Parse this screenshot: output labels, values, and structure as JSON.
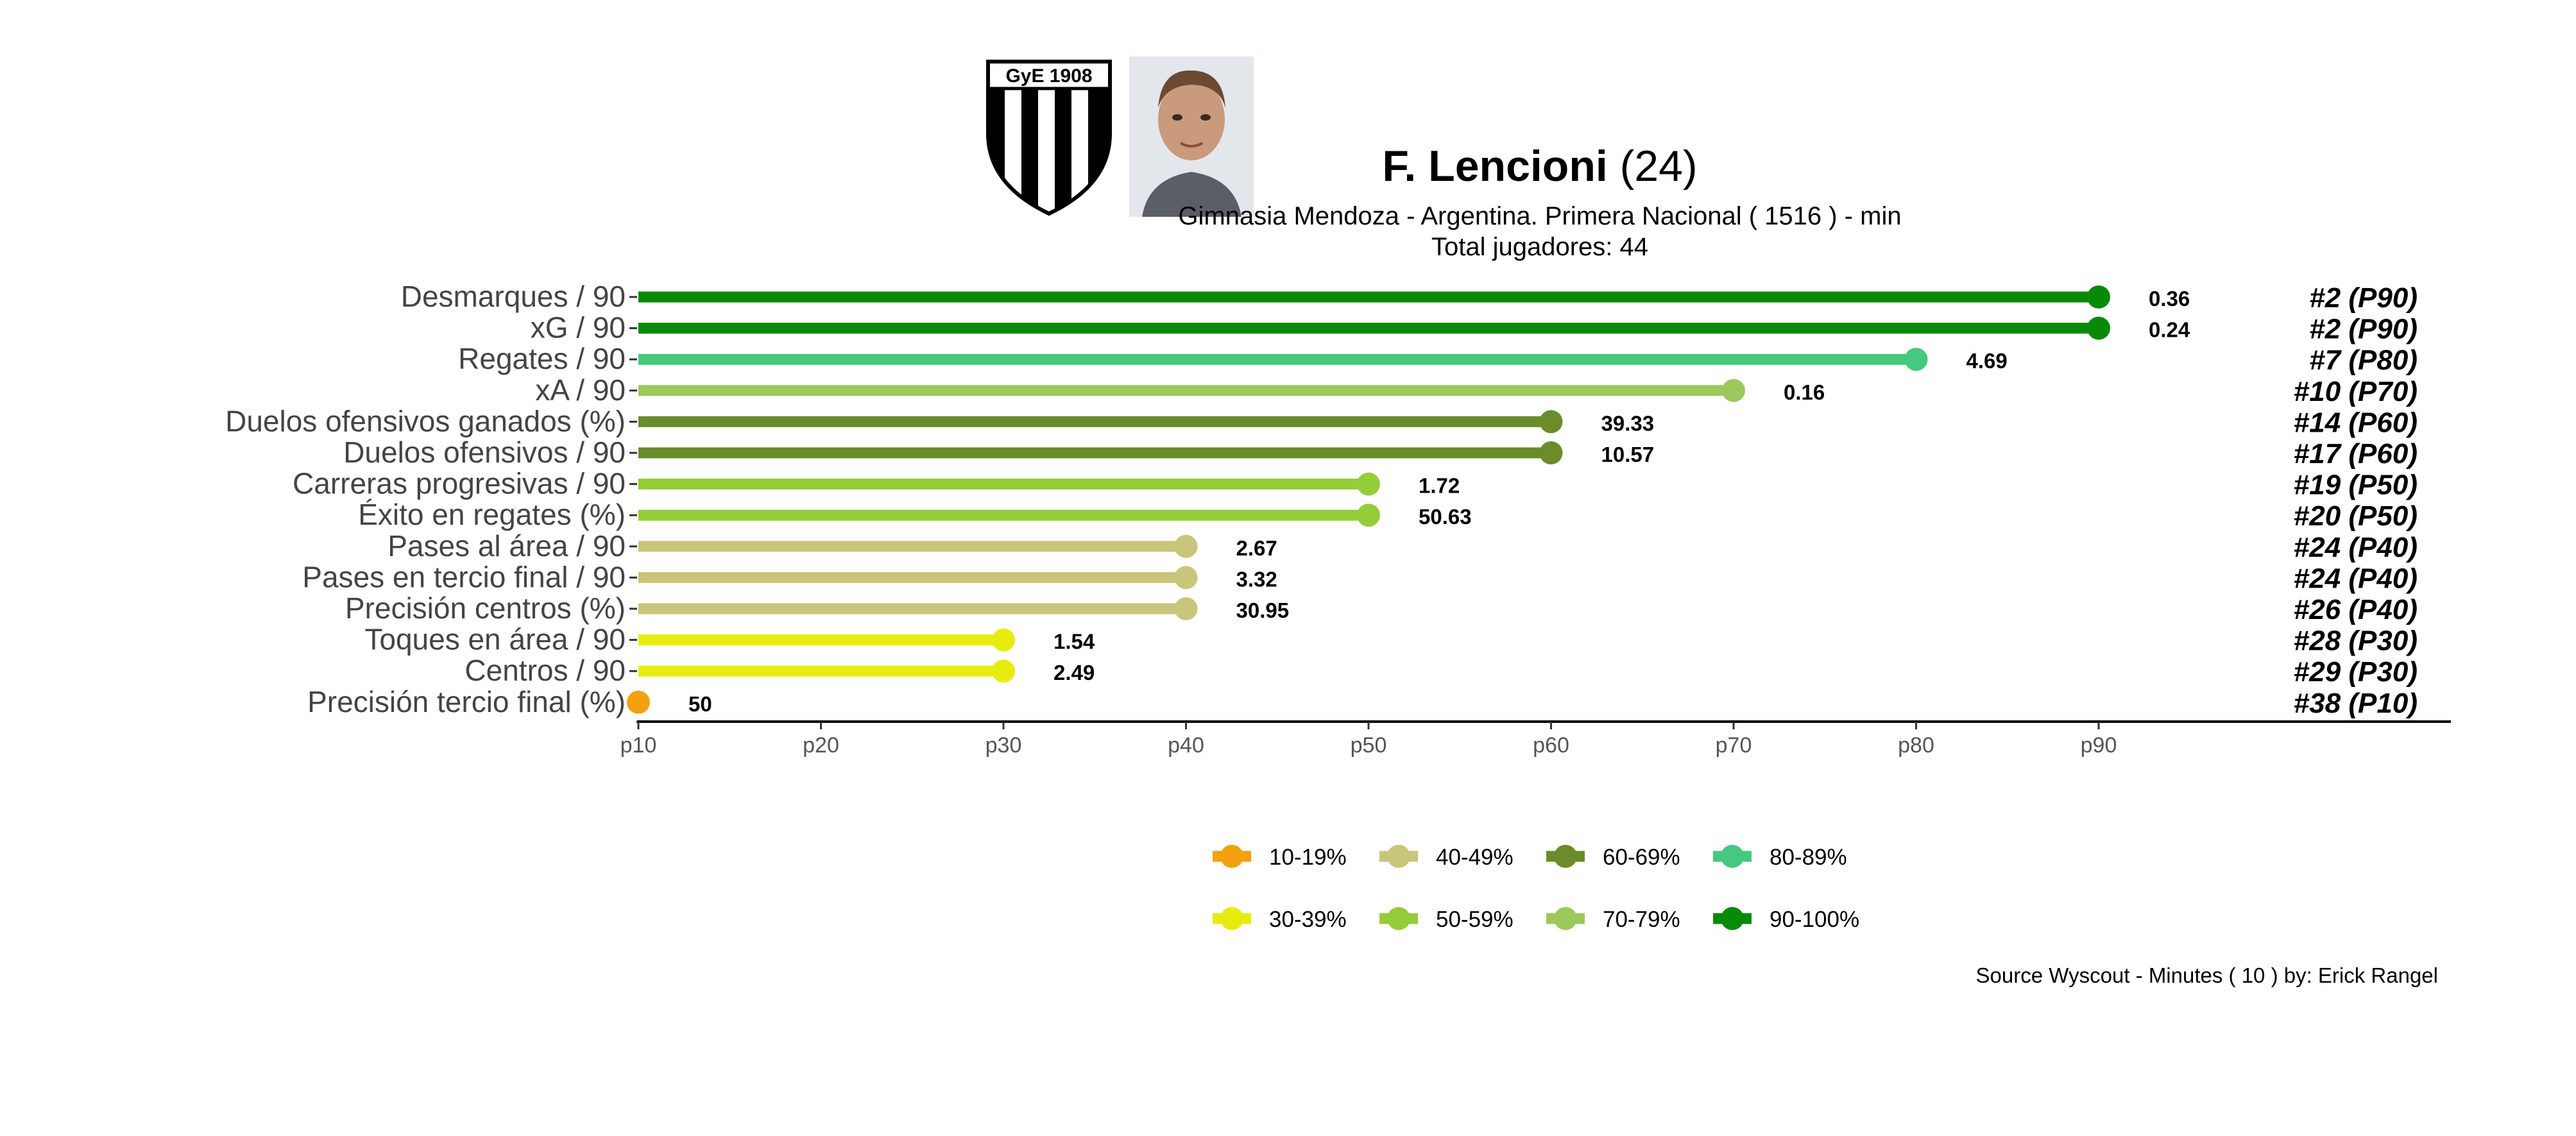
{
  "header": {
    "player_name": "F. Lencioni",
    "player_age": "(24)",
    "subtitle": "Gimnasia Mendoza  -  Argentina. Primera Nacional  ( 1516 ) - min",
    "total_players": "Total jugadores:  44",
    "crest_text": "GyE 1908"
  },
  "footer": {
    "source": "Source Wyscout - Minutes ( 10 ) by: Erick Rangel"
  },
  "colors": {
    "10-19%": "#f5a00f",
    "30-39%": "#e8ec0e",
    "40-49%": "#c9c57a",
    "50-59%": "#95cc3a",
    "60-69%": "#6a8c2a",
    "70-79%": "#9cc85c",
    "80-89%": "#45c87f",
    "90-100%": "#088a08"
  },
  "chart_data": {
    "type": "lollipop",
    "x_ticks": [
      "p10",
      "p20",
      "p30",
      "p40",
      "p50",
      "p60",
      "p70",
      "p80",
      "p90"
    ],
    "xlim": [
      10,
      100
    ],
    "rows": [
      {
        "label": "Desmarques / 90",
        "percentile": 90,
        "value": "0.36",
        "rank": "#2 (P90)",
        "bin": "90-100%"
      },
      {
        "label": "xG / 90",
        "percentile": 90,
        "value": "0.24",
        "rank": "#2 (P90)",
        "bin": "90-100%"
      },
      {
        "label": "Regates / 90",
        "percentile": 80,
        "value": "4.69",
        "rank": "#7 (P80)",
        "bin": "80-89%"
      },
      {
        "label": "xA / 90",
        "percentile": 70,
        "value": "0.16",
        "rank": "#10 (P70)",
        "bin": "70-79%"
      },
      {
        "label": "Duelos ofensivos ganados (%)",
        "percentile": 60,
        "value": "39.33",
        "rank": "#14 (P60)",
        "bin": "60-69%"
      },
      {
        "label": "Duelos ofensivos / 90",
        "percentile": 60,
        "value": "10.57",
        "rank": "#17 (P60)",
        "bin": "60-69%"
      },
      {
        "label": "Carreras progresivas / 90",
        "percentile": 50,
        "value": "1.72",
        "rank": "#19 (P50)",
        "bin": "50-59%"
      },
      {
        "label": "Éxito en regates (%)",
        "percentile": 50,
        "value": "50.63",
        "rank": "#20 (P50)",
        "bin": "50-59%"
      },
      {
        "label": "Pases al área / 90",
        "percentile": 40,
        "value": "2.67",
        "rank": "#24 (P40)",
        "bin": "40-49%"
      },
      {
        "label": "Pases en tercio final / 90",
        "percentile": 40,
        "value": "3.32",
        "rank": "#24 (P40)",
        "bin": "40-49%"
      },
      {
        "label": "Precisión centros (%)",
        "percentile": 40,
        "value": "30.95",
        "rank": "#26 (P40)",
        "bin": "40-49%"
      },
      {
        "label": "Toques en área / 90",
        "percentile": 30,
        "value": "1.54",
        "rank": "#28 (P30)",
        "bin": "30-39%"
      },
      {
        "label": "Centros / 90",
        "percentile": 30,
        "value": "2.49",
        "rank": "#29 (P30)",
        "bin": "30-39%"
      },
      {
        "label": "Precisión tercio final (%)",
        "percentile": 10,
        "value": "50",
        "rank": "#38 (P10)",
        "bin": "10-19%"
      }
    ],
    "legend": {
      "position": "bottom-center",
      "items": [
        "10-19%",
        "40-49%",
        "60-69%",
        "80-89%",
        "30-39%",
        "50-59%",
        "70-79%",
        "90-100%"
      ]
    }
  }
}
